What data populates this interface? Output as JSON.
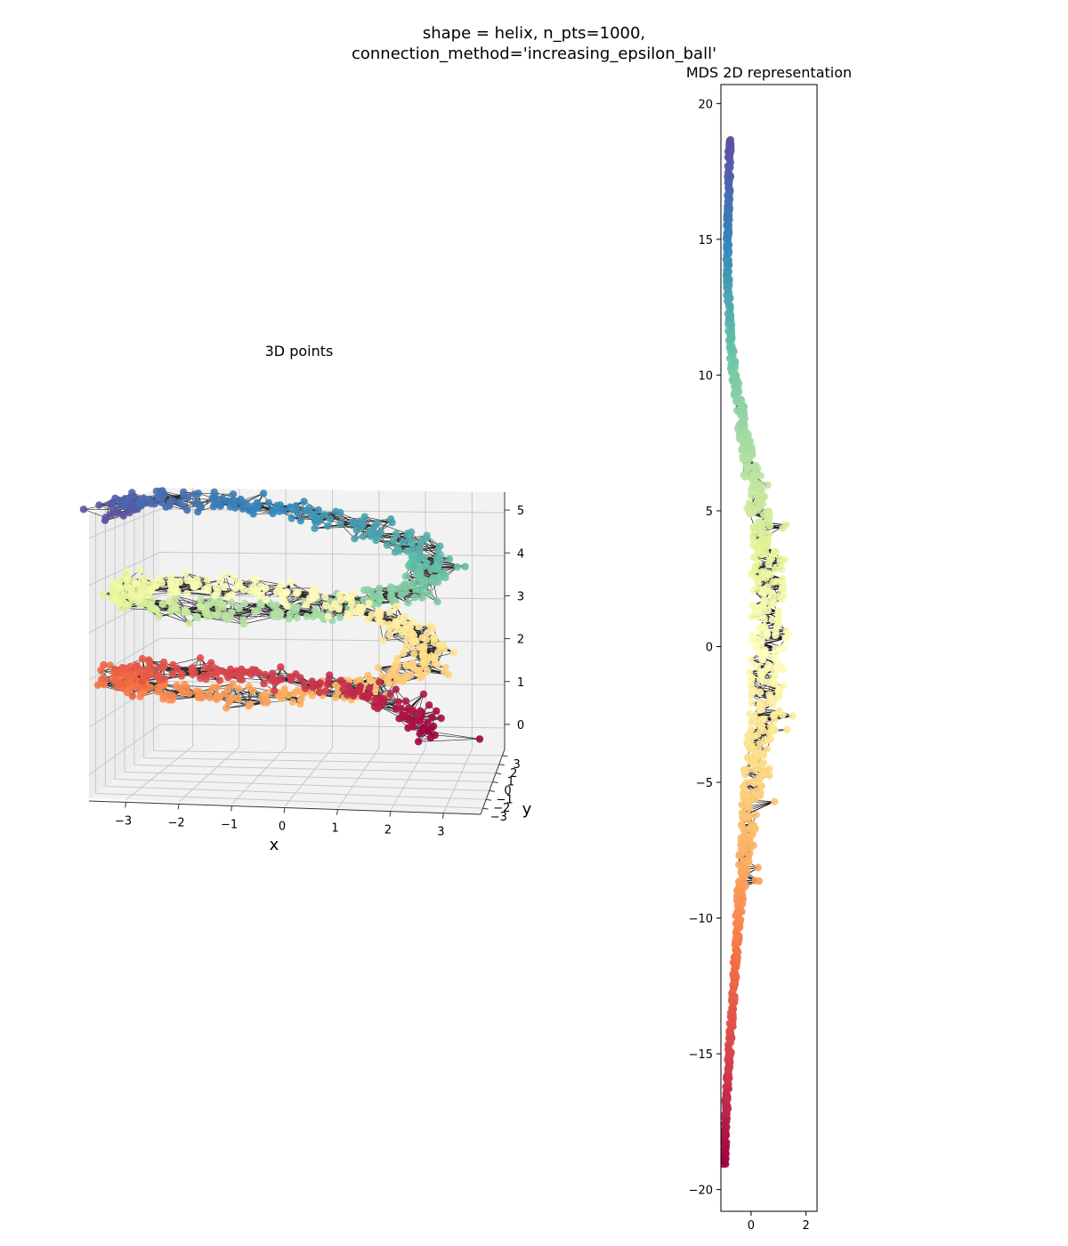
{
  "figure": {
    "suptitle_line1": "shape = helix, n_pts=1000,",
    "suptitle_line2": "connection_method='increasing_epsilon_ball'"
  },
  "chart_data": [
    {
      "type": "scatter",
      "projection": "3d",
      "title": "3D points",
      "xlabel": "x",
      "ylabel": "y",
      "zlabel": "",
      "xticks": [
        "−3",
        "−2",
        "−1",
        "0",
        "1",
        "2",
        "3"
      ],
      "yticks": [
        "−3",
        "−2",
        "−1",
        "0",
        "1",
        "2",
        "3"
      ],
      "zticks": [
        "0",
        "1",
        "2",
        "3",
        "4",
        "5"
      ],
      "xlim": [
        -3.7,
        3.7
      ],
      "ylim": [
        -3.7,
        3.7
      ],
      "zlim": [
        -0.5,
        5.5
      ],
      "grid": true,
      "n_points": 1000,
      "colormap": "Spectral",
      "edge_color": "#000000",
      "helix": {
        "radius": 3,
        "turns": 2.5,
        "z_start": 0,
        "z_end": 5,
        "noise": 0.25
      }
    },
    {
      "type": "scatter",
      "title": "MDS 2D representation",
      "xlabel": "",
      "ylabel": "",
      "xticks": [
        "0",
        "2"
      ],
      "yticks": [
        "20",
        "15",
        "10",
        "5",
        "0",
        "−5",
        "−10",
        "−15",
        "−20"
      ],
      "xlim": [
        -1.1,
        2.4
      ],
      "ylim": [
        -20.8,
        20.7
      ],
      "y_range": [
        -19,
        18.7
      ],
      "n_points": 1000,
      "colormap": "Spectral",
      "edge_color": "#000000"
    }
  ]
}
